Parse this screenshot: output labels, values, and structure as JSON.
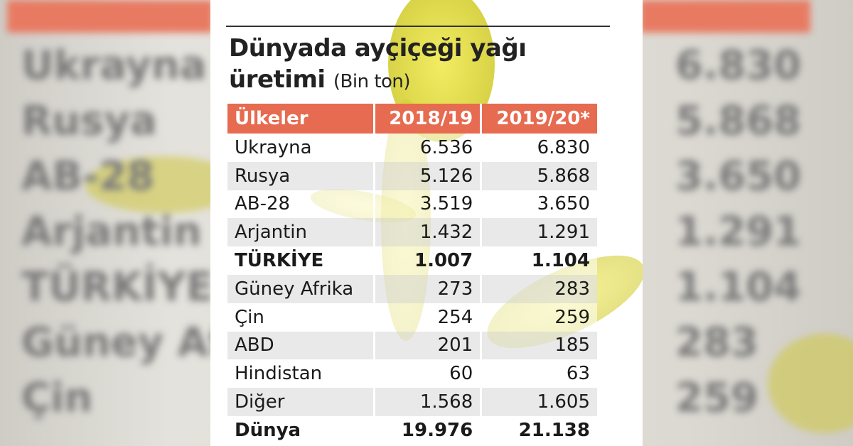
{
  "title": "Dünyada ayçiçeği yağı üretimi",
  "unit": "(Bin ton)",
  "colors": {
    "header": "#e66b50",
    "accent_leaf": "#e8e145",
    "text": "#222222"
  },
  "chart_data": {
    "type": "table",
    "title": "Dünyada ayçiçeği yağı üretimi",
    "subtitle": "(Bin ton)",
    "columns": [
      "Ülkeler",
      "2018/19",
      "2019/20*"
    ],
    "rows": [
      {
        "country": "Ukrayna",
        "v2018": "6.536",
        "v2019": "6.830",
        "bold": false
      },
      {
        "country": "Rusya",
        "v2018": "5.126",
        "v2019": "5.868",
        "bold": false
      },
      {
        "country": "AB-28",
        "v2018": "3.519",
        "v2019": "3.650",
        "bold": false
      },
      {
        "country": "Arjantin",
        "v2018": "1.432",
        "v2019": "1.291",
        "bold": false
      },
      {
        "country": "TÜRKİYE",
        "v2018": "1.007",
        "v2019": "1.104",
        "bold": true
      },
      {
        "country": "Güney Afrika",
        "v2018": "273",
        "v2019": "283",
        "bold": false
      },
      {
        "country": "Çin",
        "v2018": "254",
        "v2019": "259",
        "bold": false
      },
      {
        "country": "ABD",
        "v2018": "201",
        "v2019": "185",
        "bold": false
      },
      {
        "country": "Hindistan",
        "v2018": "60",
        "v2019": "63",
        "bold": false
      },
      {
        "country": "Diğer",
        "v2018": "1.568",
        "v2019": "1.605",
        "bold": false
      },
      {
        "country": "Dünya",
        "v2018": "19.976",
        "v2019": "21.138",
        "bold": true
      }
    ]
  }
}
